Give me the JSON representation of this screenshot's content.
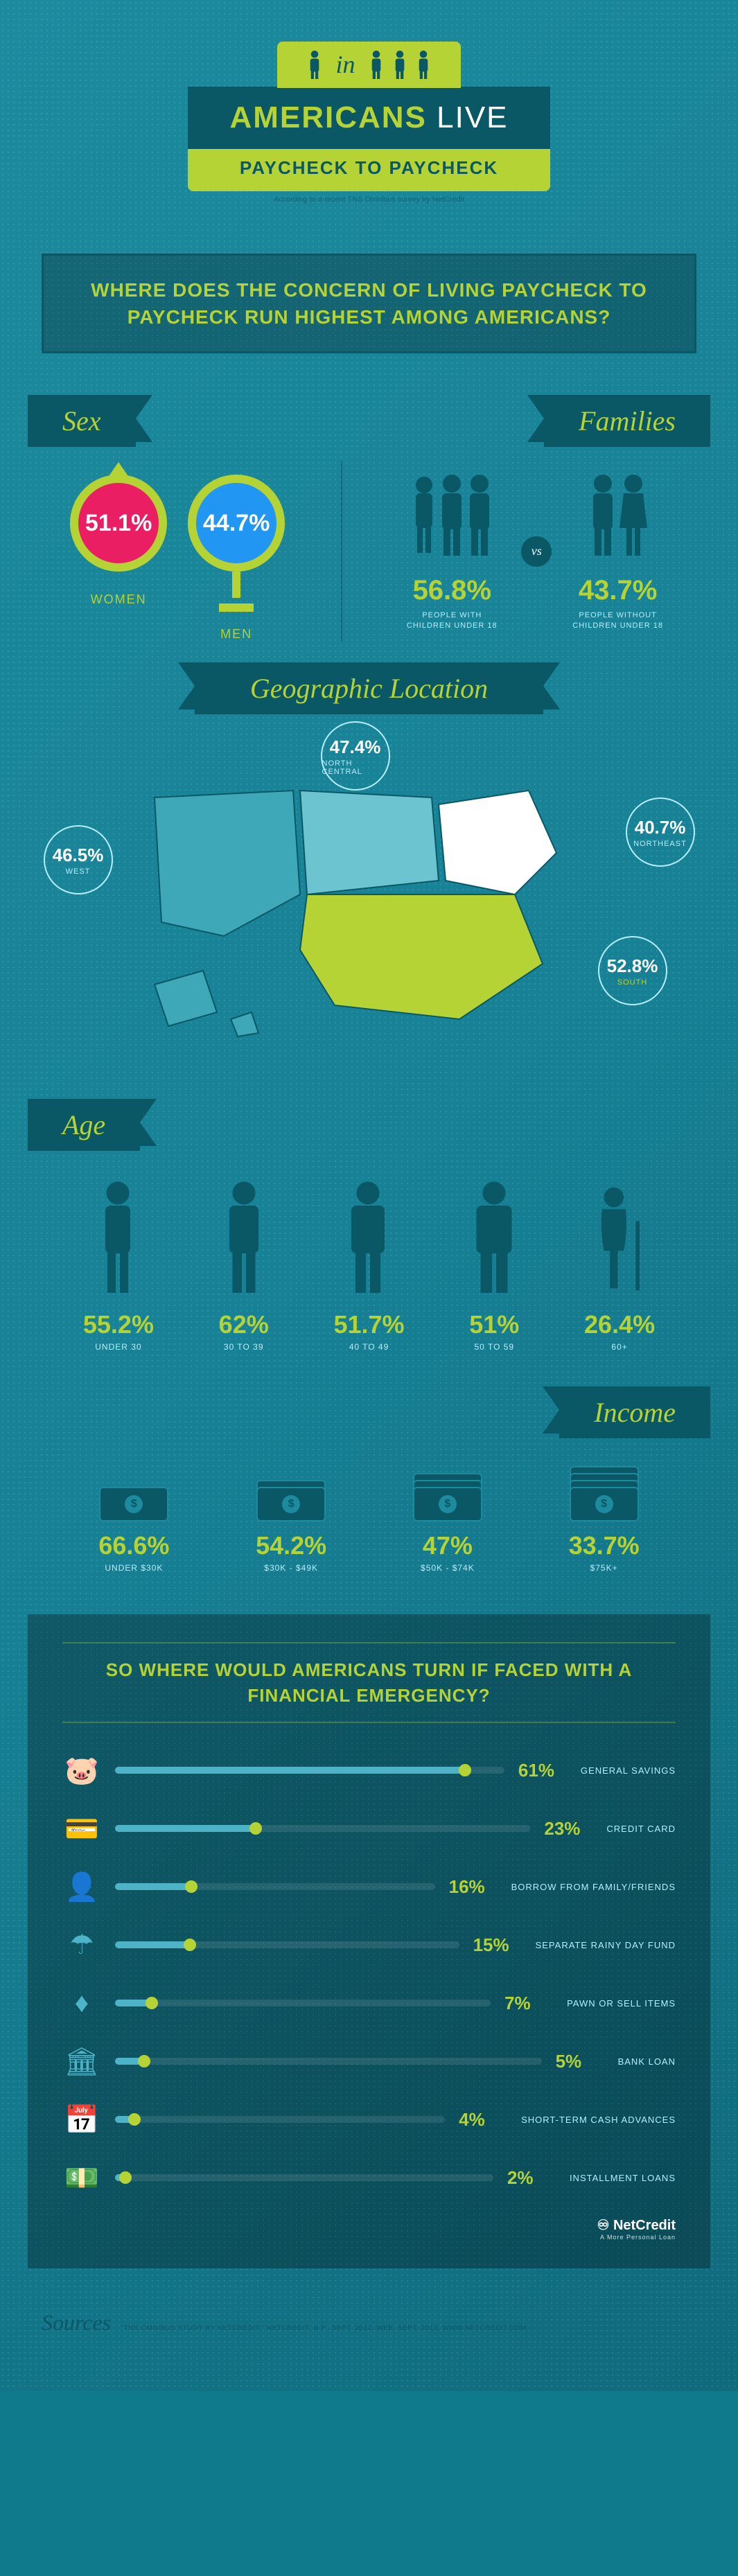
{
  "header": {
    "in": "in",
    "line1_a": "AMERICANS",
    "line1_b": "LIVE",
    "line2": "PAYCHECK TO PAYCHECK",
    "caption": "According to a recent TNS Omnibus survey by NetCredit"
  },
  "question": "WHERE DOES THE CONCERN OF LIVING PAYCHECK TO PAYCHECK RUN HIGHEST AMONG AMERICANS?",
  "sections": {
    "sex": "Sex",
    "families": "Families",
    "geo": "Geographic Location",
    "age": "Age",
    "income": "Income"
  },
  "sex": {
    "women": {
      "pct": "51.1%",
      "label": "WOMEN",
      "color": "#e4126b"
    },
    "men": {
      "pct": "44.7%",
      "label": "MEN",
      "color": "#1e9fd8"
    }
  },
  "families": {
    "with": {
      "pct": "56.8%",
      "label1": "PEOPLE WITH",
      "label2": "CHILDREN UNDER 18"
    },
    "vs": "vs",
    "without": {
      "pct": "43.7%",
      "label1": "PEOPLE WITHOUT",
      "label2": "CHILDREN UNDER 18"
    }
  },
  "geo": {
    "west": {
      "pct": "46.5%",
      "label": "WEST"
    },
    "north_central": {
      "pct": "47.4%",
      "label": "NORTH CENTRAL"
    },
    "northeast": {
      "pct": "40.7%",
      "label": "NORTHEAST"
    },
    "south": {
      "pct": "52.8%",
      "label": "SOUTH"
    }
  },
  "age": [
    {
      "pct": "55.2%",
      "label": "UNDER 30"
    },
    {
      "pct": "62%",
      "label": "30 TO 39"
    },
    {
      "pct": "51.7%",
      "label": "40 TO 49"
    },
    {
      "pct": "51%",
      "label": "50 TO 59"
    },
    {
      "pct": "26.4%",
      "label": "60+"
    }
  ],
  "income": [
    {
      "bills": 1,
      "pct": "66.6%",
      "label": "UNDER $30K"
    },
    {
      "bills": 2,
      "pct": "54.2%",
      "label": "$30K - $49K"
    },
    {
      "bills": 3,
      "pct": "47%",
      "label": "$50K - $74K"
    },
    {
      "bills": 4,
      "pct": "33.7%",
      "label": "$75K+"
    }
  ],
  "emergency": {
    "title": "SO WHERE WOULD AMERICANS TURN IF FACED WITH A FINANCIAL EMERGENCY?",
    "items": [
      {
        "icon": "piggy",
        "pct": "61%",
        "width": 90,
        "label": "GENERAL SAVINGS"
      },
      {
        "icon": "card",
        "pct": "23%",
        "width": 34,
        "label": "CREDIT CARD"
      },
      {
        "icon": "person",
        "pct": "16%",
        "width": 24,
        "label": "BORROW FROM FAMILY/FRIENDS"
      },
      {
        "icon": "umbrella",
        "pct": "15%",
        "width": 22,
        "label": "SEPARATE RAINY DAY FUND"
      },
      {
        "icon": "diamond",
        "pct": "7%",
        "width": 10,
        "label": "PAWN OR SELL ITEMS"
      },
      {
        "icon": "bank",
        "pct": "5%",
        "width": 7,
        "label": "BANK LOAN"
      },
      {
        "icon": "calendar",
        "pct": "4%",
        "width": 6,
        "label": "SHORT-TERM CASH ADVANCES"
      },
      {
        "icon": "cash",
        "pct": "2%",
        "width": 3,
        "label": "INSTALLMENT LOANS"
      }
    ]
  },
  "footer": {
    "sources": "Sources",
    "sources_text": "\"TNS OMNIBUS STUDY BY NETCREDIT.\" NETCREDIT. N.P., SEPT. 2012. WEB. SEPT. 2012. WWW.NETCREDIT.COM",
    "brand": "NetCredit",
    "tagline": "A More Personal Loan"
  },
  "colors": {
    "accent": "#b5d334",
    "dark": "#0a5866",
    "light": "#b5efff",
    "bar": "#4fb3c7"
  }
}
